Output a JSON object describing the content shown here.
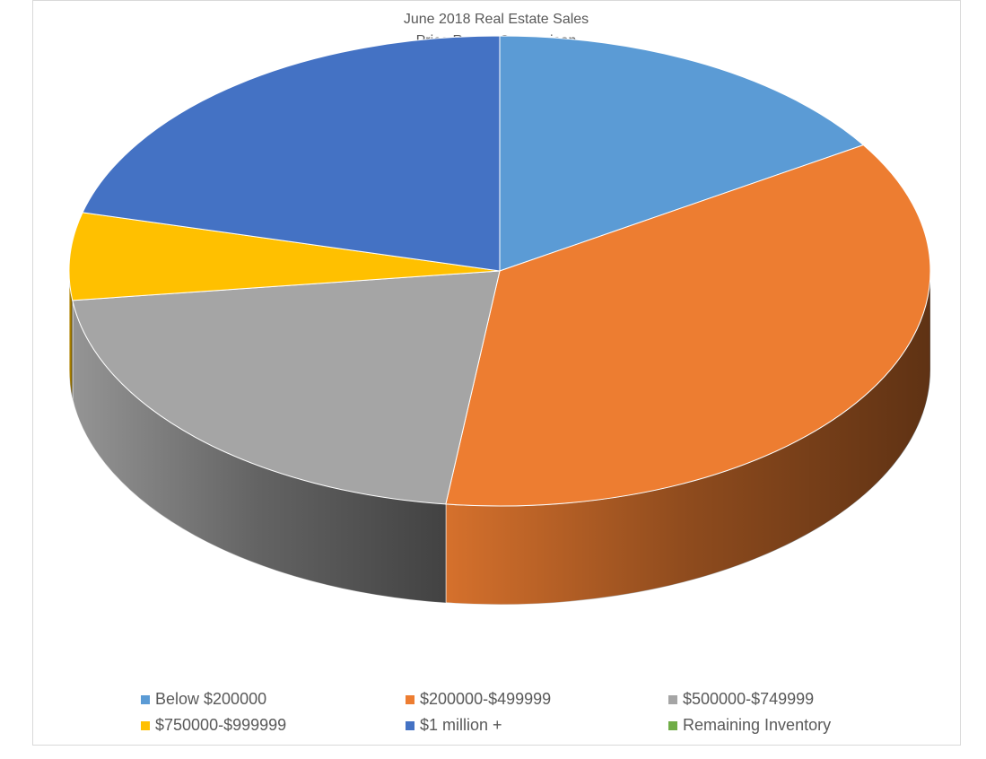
{
  "chart_data": {
    "type": "pie3d",
    "title": "June 2018 Real Estate Sales",
    "subtitle": "Price Range Comparison",
    "categories": [
      "Below $200000",
      "$200000-$499999",
      "$500000-$749999",
      "$750000-$999999",
      "$1 million +",
      "Remaining Inventory"
    ],
    "values": [
      16,
      36,
      21,
      6,
      21,
      0
    ],
    "colors": [
      "#5b9bd5",
      "#ed7d31",
      "#a5a5a5",
      "#ffc000",
      "#4472c4",
      "#70ad47"
    ],
    "legend": "bottom"
  }
}
